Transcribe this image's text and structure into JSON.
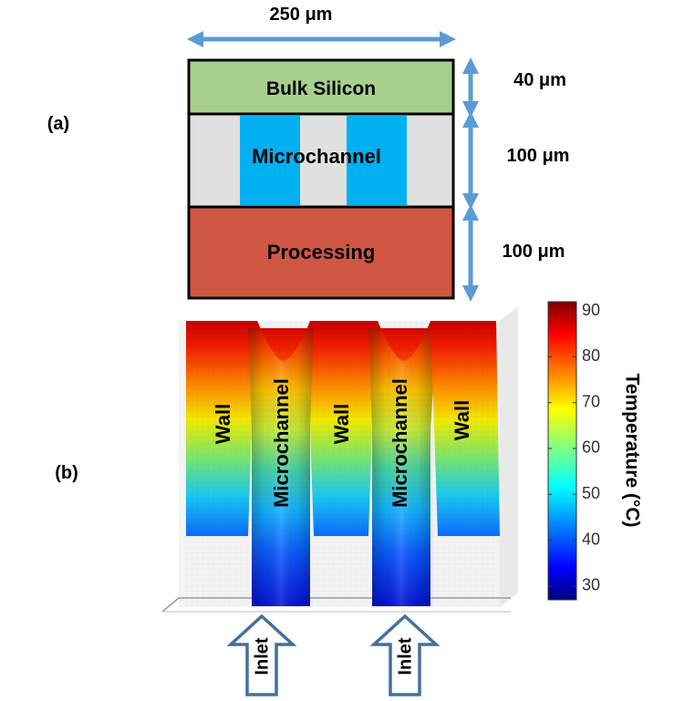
{
  "panel_a": {
    "label": "(a)",
    "width_dim": "250 μm",
    "layers": [
      {
        "name": "Bulk Silicon",
        "thickness": "40 μm",
        "fill": "#a8d08d"
      },
      {
        "name": "Microchannel",
        "thickness": "100 μm",
        "fill": "#e0e0e0",
        "channel_fill": "#00b0f0"
      },
      {
        "name": "Processing",
        "thickness": "100 μm",
        "fill": "#d05744"
      }
    ],
    "arrow_color": "#5b9bd5"
  },
  "panel_b": {
    "label": "(b)",
    "region_labels": [
      "Wall",
      "Microchannel",
      "Wall",
      "Microchannel",
      "Wall"
    ],
    "inlet_label": "Inlet",
    "inlet_arrow_color": "#41719c",
    "colorbar": {
      "title": "Temperature (°C)",
      "ticks": [
        "90",
        "80",
        "70",
        "60",
        "50",
        "40",
        "30"
      ],
      "min": 27,
      "max": 92
    }
  }
}
